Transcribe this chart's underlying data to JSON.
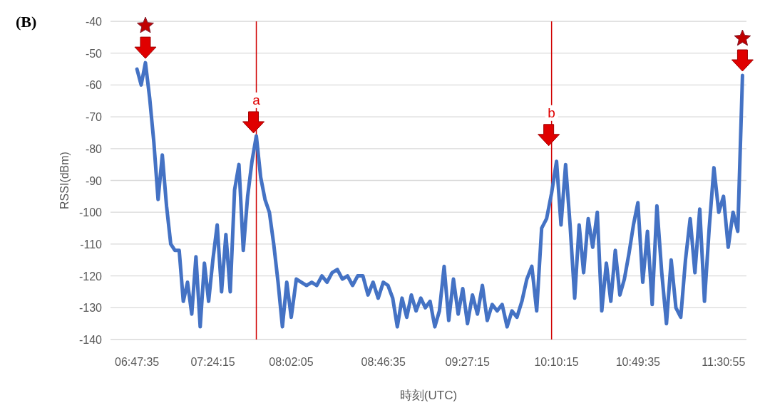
{
  "chart_data": {
    "type": "line",
    "xlabel": "時刻(UTC)",
    "ylabel": "RSSI(dBm)",
    "xlim": [
      6.58,
      11.7
    ],
    "xticks": [
      {
        "value": 6.7931,
        "label": "06:47:35"
      },
      {
        "value": 7.4042,
        "label": "07:24:15"
      },
      {
        "value": 8.0347,
        "label": "08:02:05"
      },
      {
        "value": 8.7764,
        "label": "08:46:35"
      },
      {
        "value": 9.4542,
        "label": "09:27:15"
      },
      {
        "value": 10.1708,
        "label": "10:10:15"
      },
      {
        "value": 10.8264,
        "label": "10:49:35"
      },
      {
        "value": 11.5153,
        "label": "11:30:55"
      }
    ],
    "ylim": [
      -140,
      -40
    ],
    "yticks": [
      -140,
      -130,
      -120,
      -110,
      -100,
      -90,
      -80,
      -70,
      -60,
      -50,
      -40
    ],
    "grid": "y",
    "series": [
      {
        "color": "#4472c4",
        "x": [
          6.793,
          6.827,
          6.861,
          6.895,
          6.929,
          6.963,
          6.997,
          7.031,
          7.065,
          7.099,
          7.133,
          7.166,
          7.2,
          7.234,
          7.268,
          7.302,
          7.336,
          7.37,
          7.404,
          7.439,
          7.474,
          7.509,
          7.544,
          7.579,
          7.614,
          7.649,
          7.684,
          7.719,
          7.754,
          7.789,
          7.824,
          7.859,
          7.894,
          7.929,
          7.964,
          7.999,
          8.035,
          8.076,
          8.117,
          8.158,
          8.2,
          8.241,
          8.282,
          8.323,
          8.364,
          8.406,
          8.447,
          8.488,
          8.529,
          8.57,
          8.612,
          8.653,
          8.694,
          8.735,
          8.776,
          8.814,
          8.852,
          8.889,
          8.927,
          8.965,
          9.002,
          9.04,
          9.078,
          9.115,
          9.153,
          9.191,
          9.228,
          9.266,
          9.303,
          9.341,
          9.379,
          9.416,
          9.454,
          9.494,
          9.534,
          9.574,
          9.613,
          9.653,
          9.693,
          9.733,
          9.773,
          9.812,
          9.852,
          9.892,
          9.932,
          9.972,
          10.011,
          10.051,
          10.091,
          10.131,
          10.171,
          10.207,
          10.244,
          10.28,
          10.317,
          10.353,
          10.389,
          10.426,
          10.462,
          10.499,
          10.535,
          10.572,
          10.608,
          10.644,
          10.681,
          10.717,
          10.754,
          10.79,
          10.826,
          10.865,
          10.903,
          10.941,
          10.979,
          11.018,
          11.056,
          11.094,
          11.132,
          11.171,
          11.209,
          11.247,
          11.285,
          11.324,
          11.362,
          11.4,
          11.438,
          11.477,
          11.515,
          11.553,
          11.592,
          11.63,
          11.668
        ],
        "values": [
          -55,
          -60,
          -53,
          -64,
          -78,
          -96,
          -82,
          -98,
          -110,
          -112,
          -112,
          -128,
          -122,
          -132,
          -114,
          -136,
          -116,
          -128,
          -115,
          -104,
          -125,
          -107,
          -125,
          -93,
          -85,
          -112,
          -95,
          -84,
          -76,
          -89,
          -96,
          -100,
          -110,
          -122,
          -136,
          -122,
          -133,
          -121,
          -122,
          -123,
          -122,
          -123,
          -120,
          -122,
          -119,
          -118,
          -121,
          -120,
          -123,
          -120,
          -120,
          -126,
          -122,
          -127,
          -122,
          -123,
          -127,
          -136,
          -127,
          -133,
          -126,
          -131,
          -127,
          -130,
          -128,
          -136,
          -131,
          -117,
          -134,
          -121,
          -132,
          -124,
          -135,
          -126,
          -132,
          -123,
          -134,
          -129,
          -131,
          -129,
          -136,
          -131,
          -133,
          -128,
          -121,
          -117,
          -131,
          -105,
          -102,
          -94,
          -84,
          -104,
          -85,
          -104,
          -127,
          -104,
          -119,
          -102,
          -111,
          -100,
          -131,
          -116,
          -128,
          -112,
          -126,
          -121,
          -113,
          -104,
          -97,
          -122,
          -106,
          -129,
          -98,
          -119,
          -135,
          -115,
          -130,
          -133,
          -115,
          -102,
          -119,
          -99,
          -128,
          -105,
          -86,
          -100,
          -95,
          -111,
          -100,
          -106,
          -57
        ]
      }
    ],
    "ref_lines": [
      {
        "axis": "x",
        "value": 7.754,
        "color": "#d00000"
      },
      {
        "axis": "x",
        "value": 10.131,
        "color": "#d00000"
      }
    ],
    "annotations": [
      "(B)",
      {
        "text": "a",
        "x": 7.754,
        "y": -76
      },
      {
        "text": "b",
        "x": 10.131,
        "y": -80
      }
    ]
  }
}
